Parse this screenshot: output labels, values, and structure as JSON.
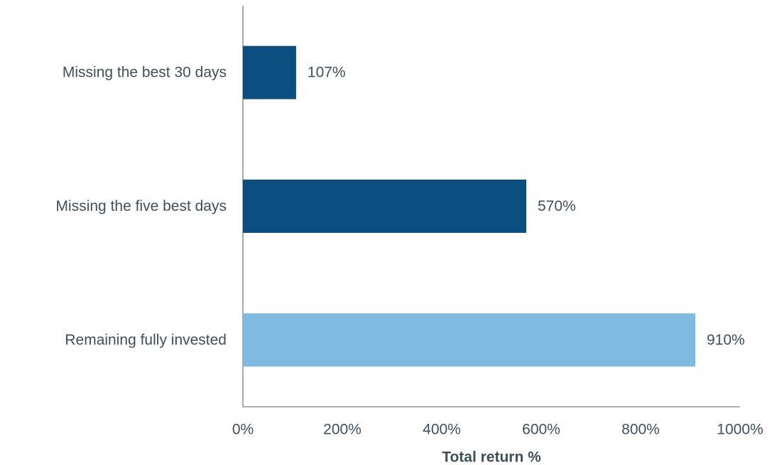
{
  "chart_data": {
    "type": "bar",
    "orientation": "horizontal",
    "categories": [
      "Missing the best 30 days",
      "Missing the five best days",
      "Remaining fully invested"
    ],
    "values": [
      107,
      570,
      910
    ],
    "value_labels": [
      "107%",
      "570%",
      "910%"
    ],
    "colors": [
      "#0b4f80",
      "#0b4f80",
      "#7fbbe0"
    ],
    "xlabel": "Total return %",
    "xlim": [
      0,
      1000
    ],
    "xticks": [
      {
        "value": 0,
        "label": "0%"
      },
      {
        "value": 200,
        "label": "200%"
      },
      {
        "value": 400,
        "label": "400%"
      },
      {
        "value": 600,
        "label": "600%"
      },
      {
        "value": 800,
        "label": "800%"
      },
      {
        "value": 1000,
        "label": "1000%"
      }
    ],
    "grid": false
  }
}
